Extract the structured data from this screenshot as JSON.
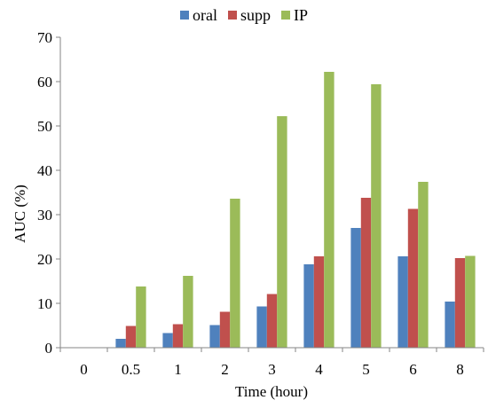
{
  "chart_data": {
    "type": "bar",
    "categories": [
      "0",
      "0.5",
      "1",
      "2",
      "3",
      "4",
      "5",
      "6",
      "8"
    ],
    "series": [
      {
        "name": "oral",
        "color": "#4F81BD",
        "values": [
          0,
          2.0,
          3.3,
          5.1,
          9.3,
          18.8,
          27.0,
          20.6,
          10.4
        ]
      },
      {
        "name": "supp",
        "color": "#C0504D",
        "values": [
          0,
          4.9,
          5.3,
          8.1,
          12.1,
          20.6,
          33.8,
          31.3,
          20.2
        ]
      },
      {
        "name": "IP",
        "color": "#9BBB59",
        "values": [
          0,
          13.8,
          16.2,
          33.6,
          52.2,
          62.2,
          59.4,
          37.4,
          20.7
        ]
      }
    ],
    "xlabel": "Time (hour)",
    "ylabel": "AUC (%)",
    "ylim": [
      0,
      70
    ],
    "yticks": [
      0,
      10,
      20,
      30,
      40,
      50,
      60,
      70
    ],
    "grid": false,
    "legend_position": "top-center"
  }
}
